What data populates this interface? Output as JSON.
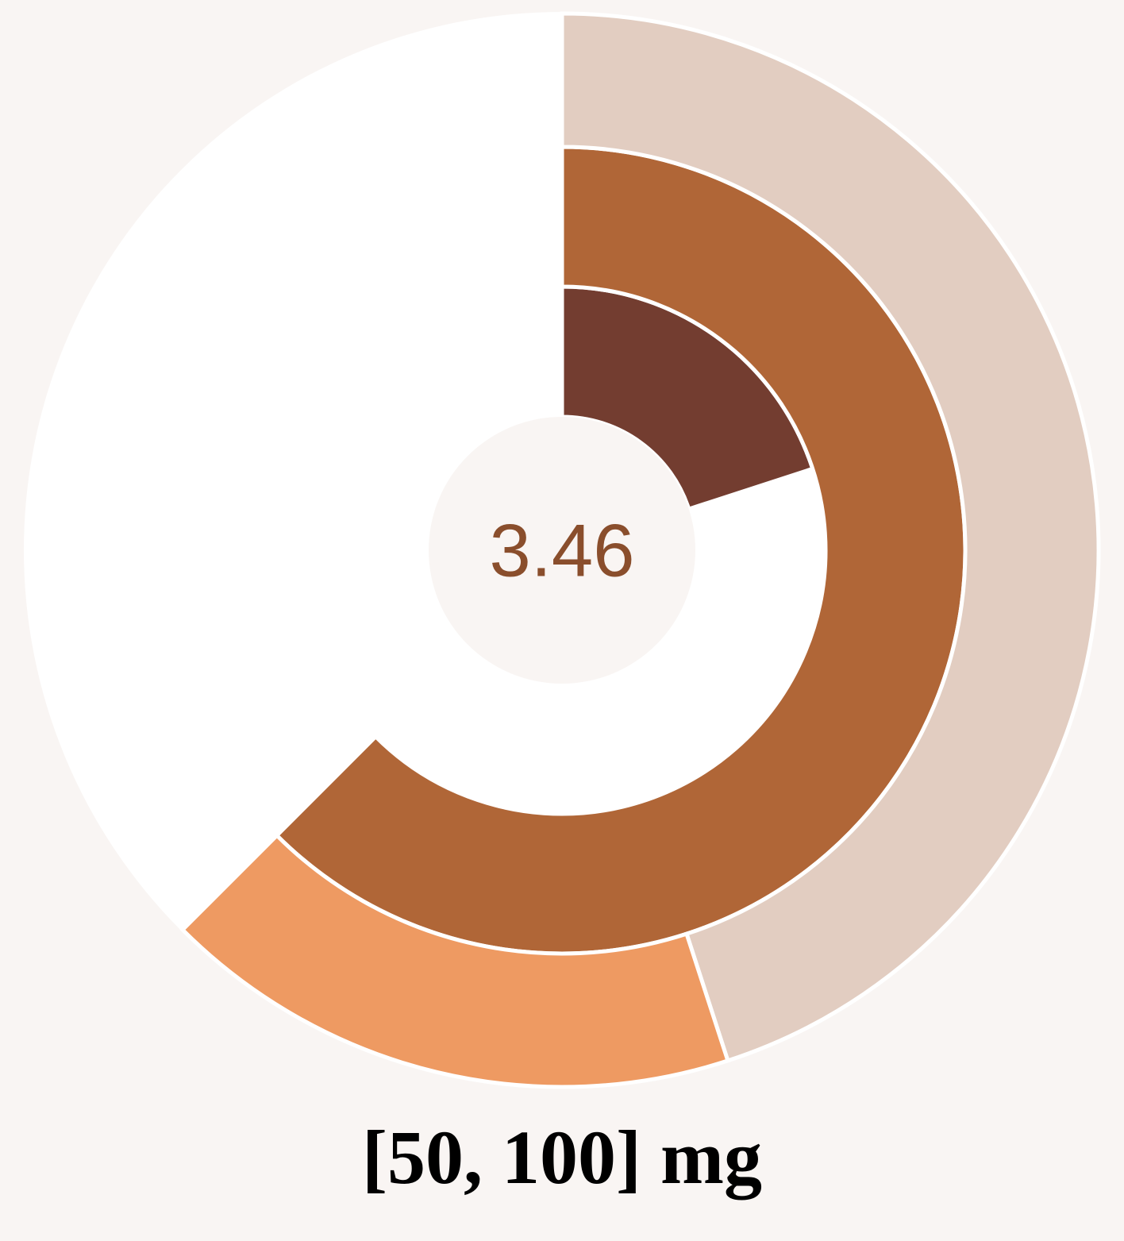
{
  "chart_data": {
    "type": "radial-bar",
    "center_label": "3.46",
    "caption": "[50, 100] mg",
    "rings": [
      {
        "segments": [
          {
            "value": 0.2,
            "color": "#733d30"
          }
        ]
      },
      {
        "segments": [
          {
            "value": 0.625,
            "color": "#b06637"
          }
        ]
      },
      {
        "segments": [
          {
            "value": 0.45,
            "color": "#e2cdc1"
          },
          {
            "value": 0.175,
            "color": "#ee9a62"
          }
        ]
      }
    ],
    "background_color": "#ffffff",
    "center_color": "#f9f5f3",
    "page_color": "#f9f5f3"
  }
}
